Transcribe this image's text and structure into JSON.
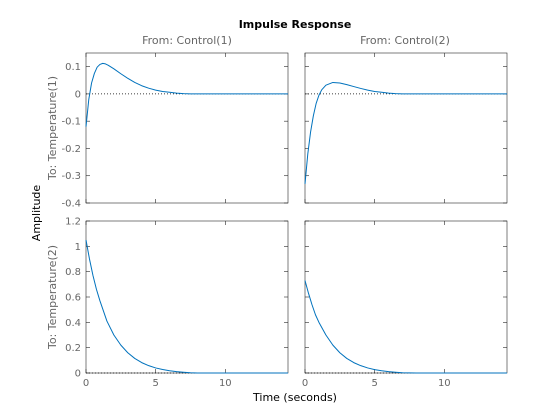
{
  "chart_data": {
    "type": "line",
    "title": "Impulse Response",
    "xlabel": "Time (seconds)",
    "ylabel": "Amplitude",
    "column_labels": [
      "From: Control(1)",
      "From: Control(2)"
    ],
    "row_labels": [
      "To: Temperature(1)",
      "To: Temperature(2)"
    ],
    "xlim": [
      0,
      14.5
    ],
    "xticks": [
      "0",
      "5",
      "10"
    ],
    "xtick_values": [
      0,
      5,
      10
    ],
    "rows": [
      {
        "ylim": [
          -0.4,
          0.15
        ],
        "yticks": [
          "-0.4",
          "-0.3",
          "-0.2",
          "-0.1",
          "0",
          "0.1"
        ],
        "ytick_values": [
          -0.4,
          -0.3,
          -0.2,
          -0.1,
          0,
          0.1
        ]
      },
      {
        "ylim": [
          0,
          1.2
        ],
        "yticks": [
          "0",
          "0.2",
          "0.4",
          "0.6",
          "0.8",
          "1",
          "1.2"
        ],
        "ytick_values": [
          0,
          0.2,
          0.4,
          0.6,
          0.8,
          1,
          1.2
        ]
      }
    ],
    "zero_line": "dotted",
    "grid": false,
    "line_color": "#0072bd",
    "series": [
      {
        "row": 0,
        "col": 0,
        "x": [
          0,
          0.2,
          0.4,
          0.6,
          0.8,
          1.0,
          1.2,
          1.4,
          1.6,
          2.0,
          2.5,
          3.0,
          3.5,
          4.0,
          4.5,
          5.0,
          5.5,
          6.0,
          6.5,
          7.0,
          7.5,
          8.0,
          10.0,
          14.5
        ],
        "y": [
          -0.12,
          -0.02,
          0.04,
          0.075,
          0.098,
          0.108,
          0.112,
          0.11,
          0.105,
          0.092,
          0.074,
          0.057,
          0.042,
          0.03,
          0.021,
          0.014,
          0.009,
          0.006,
          0.003,
          0.001,
          0,
          0,
          0,
          0
        ]
      },
      {
        "row": 0,
        "col": 1,
        "x": [
          0,
          0.2,
          0.4,
          0.6,
          0.8,
          1.0,
          1.2,
          1.5,
          2.0,
          2.5,
          3.0,
          3.5,
          4.0,
          4.5,
          5.0,
          5.5,
          6.0,
          6.5,
          7.0,
          8.0,
          10.0,
          14.5
        ],
        "y": [
          -0.33,
          -0.22,
          -0.14,
          -0.08,
          -0.035,
          -0.005,
          0.015,
          0.032,
          0.042,
          0.04,
          0.034,
          0.027,
          0.02,
          0.014,
          0.009,
          0.006,
          0.003,
          0.001,
          0,
          0,
          0,
          0
        ]
      },
      {
        "row": 1,
        "col": 0,
        "x": [
          0,
          0.25,
          0.5,
          0.75,
          1.0,
          1.5,
          2.0,
          2.5,
          3.0,
          3.5,
          4.0,
          4.5,
          5.0,
          5.5,
          6.0,
          6.5,
          7.0,
          7.5,
          8.0,
          10.0,
          14.5
        ],
        "y": [
          1.05,
          0.9,
          0.77,
          0.66,
          0.57,
          0.41,
          0.3,
          0.22,
          0.16,
          0.115,
          0.082,
          0.058,
          0.04,
          0.028,
          0.018,
          0.011,
          0.006,
          0.002,
          0,
          0,
          0
        ]
      },
      {
        "row": 1,
        "col": 1,
        "x": [
          0,
          0.25,
          0.5,
          0.75,
          1.0,
          1.5,
          2.0,
          2.5,
          3.0,
          3.5,
          4.0,
          4.5,
          5.0,
          5.5,
          6.0,
          6.5,
          7.0,
          8.0,
          10.0,
          14.5
        ],
        "y": [
          0.73,
          0.63,
          0.54,
          0.46,
          0.4,
          0.3,
          0.22,
          0.16,
          0.115,
          0.082,
          0.058,
          0.04,
          0.027,
          0.018,
          0.011,
          0.006,
          0.002,
          0,
          0,
          0
        ]
      }
    ]
  }
}
